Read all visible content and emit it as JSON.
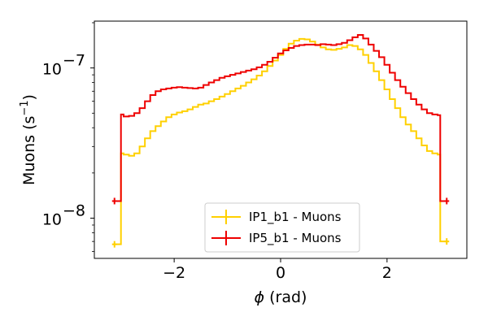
{
  "chart_data": {
    "type": "line",
    "title": "",
    "xlabel_symbol": "ϕ",
    "xlabel_unit": " (rad)",
    "ylabel_main": "Muons (s",
    "ylabel_exp": "−1",
    "ylabel_close": ")",
    "yscale": "log",
    "xlim": [
      -3.5,
      3.5
    ],
    "ylim": [
      5.4e-09,
      2.05e-07
    ],
    "grid": false,
    "legend_position": "lower-center",
    "x_ticks": [
      {
        "value": -2,
        "label": "−2"
      },
      {
        "value": 0,
        "label": "0"
      },
      {
        "value": 2,
        "label": "2"
      }
    ],
    "y_major_ticks": [
      {
        "value": 1e-08,
        "base": "10",
        "exp": "−8"
      },
      {
        "value": 1e-07,
        "base": "10",
        "exp": "−7"
      }
    ],
    "y_minor_ticks": [
      6e-09,
      7e-09,
      8e-09,
      9e-09,
      2e-08,
      3e-08,
      4e-08,
      5e-08,
      6e-08,
      7e-08,
      8e-08,
      9e-08,
      2e-07
    ],
    "bin_edges": [
      -3.1416,
      -3.0,
      3.0,
      3.1416
    ],
    "series": [
      {
        "name": "IP1_b1 - Muons",
        "color": "#ffd000",
        "edge_values": [
          6.7e-09,
          7e-09
        ],
        "x": [
          -3.0,
          -2.9,
          -2.8,
          -2.7,
          -2.6,
          -2.5,
          -2.4,
          -2.3,
          -2.2,
          -2.1,
          -2.0,
          -1.9,
          -1.8,
          -1.7,
          -1.6,
          -1.5,
          -1.4,
          -1.3,
          -1.2,
          -1.1,
          -1.0,
          -0.9,
          -0.8,
          -0.7,
          -0.6,
          -0.5,
          -0.4,
          -0.3,
          -0.2,
          -0.1,
          0.0,
          0.1,
          0.2,
          0.3,
          0.4,
          0.5,
          0.6,
          0.7,
          0.8,
          0.9,
          1.0,
          1.1,
          1.2,
          1.3,
          1.4,
          1.5,
          1.6,
          1.7,
          1.8,
          1.9,
          2.0,
          2.1,
          2.2,
          2.3,
          2.4,
          2.5,
          2.6,
          2.7,
          2.8,
          2.9,
          3.0
        ],
        "y": [
          2.7e-08,
          2.65e-08,
          2.6e-08,
          2.7e-08,
          3e-08,
          3.4e-08,
          3.8e-08,
          4.1e-08,
          4.4e-08,
          4.7e-08,
          4.9e-08,
          5.05e-08,
          5.15e-08,
          5.3e-08,
          5.5e-08,
          5.7e-08,
          5.8e-08,
          6e-08,
          6.2e-08,
          6.45e-08,
          6.7e-08,
          7e-08,
          7.3e-08,
          7.6e-08,
          8e-08,
          8.4e-08,
          8.9e-08,
          9.5e-08,
          1.03e-07,
          1.12e-07,
          1.22e-07,
          1.34e-07,
          1.45e-07,
          1.52e-07,
          1.56e-07,
          1.55e-07,
          1.5e-07,
          1.43e-07,
          1.37e-07,
          1.33e-07,
          1.32e-07,
          1.34e-07,
          1.37e-07,
          1.42e-07,
          1.4e-07,
          1.33e-07,
          1.22e-07,
          1.08e-07,
          9.5e-08,
          8.3e-08,
          7.2e-08,
          6.2e-08,
          5.4e-08,
          4.7e-08,
          4.2e-08,
          3.8e-08,
          3.4e-08,
          3.05e-08,
          2.8e-08,
          2.7e-08,
          2.65e-08
        ]
      },
      {
        "name": "IP5_b1 - Muons",
        "color": "#ee0000",
        "edge_values": [
          1.3e-08,
          1.3e-08
        ],
        "x": [
          -3.0,
          -2.9,
          -2.8,
          -2.7,
          -2.6,
          -2.5,
          -2.4,
          -2.3,
          -2.2,
          -2.1,
          -2.0,
          -1.9,
          -1.8,
          -1.7,
          -1.6,
          -1.5,
          -1.4,
          -1.3,
          -1.2,
          -1.1,
          -1.0,
          -0.9,
          -0.8,
          -0.7,
          -0.6,
          -0.5,
          -0.4,
          -0.3,
          -0.2,
          -0.1,
          0.0,
          0.1,
          0.2,
          0.3,
          0.4,
          0.5,
          0.6,
          0.7,
          0.8,
          0.9,
          1.0,
          1.1,
          1.2,
          1.3,
          1.4,
          1.5,
          1.6,
          1.7,
          1.8,
          1.9,
          2.0,
          2.1,
          2.2,
          2.3,
          2.4,
          2.5,
          2.6,
          2.7,
          2.8,
          2.9,
          3.0
        ],
        "y": [
          4.9e-08,
          4.75e-08,
          4.8e-08,
          5e-08,
          5.4e-08,
          6e-08,
          6.6e-08,
          7e-08,
          7.2e-08,
          7.3e-08,
          7.4e-08,
          7.45e-08,
          7.4e-08,
          7.35e-08,
          7.3e-08,
          7.4e-08,
          7.7e-08,
          8e-08,
          8.3e-08,
          8.6e-08,
          8.8e-08,
          9e-08,
          9.2e-08,
          9.4e-08,
          9.6e-08,
          9.8e-08,
          1.01e-07,
          1.05e-07,
          1.1e-07,
          1.17e-07,
          1.25e-07,
          1.31e-07,
          1.36e-07,
          1.4e-07,
          1.42e-07,
          1.43e-07,
          1.43e-07,
          1.42e-07,
          1.44e-07,
          1.43e-07,
          1.42e-07,
          1.44e-07,
          1.47e-07,
          1.53e-07,
          1.6e-07,
          1.66e-07,
          1.57e-07,
          1.43e-07,
          1.3e-07,
          1.18e-07,
          1.05e-07,
          9.3e-08,
          8.3e-08,
          7.5e-08,
          6.8e-08,
          6.2e-08,
          5.7e-08,
          5.3e-08,
          5e-08,
          4.9e-08,
          4.85e-08
        ]
      }
    ]
  }
}
